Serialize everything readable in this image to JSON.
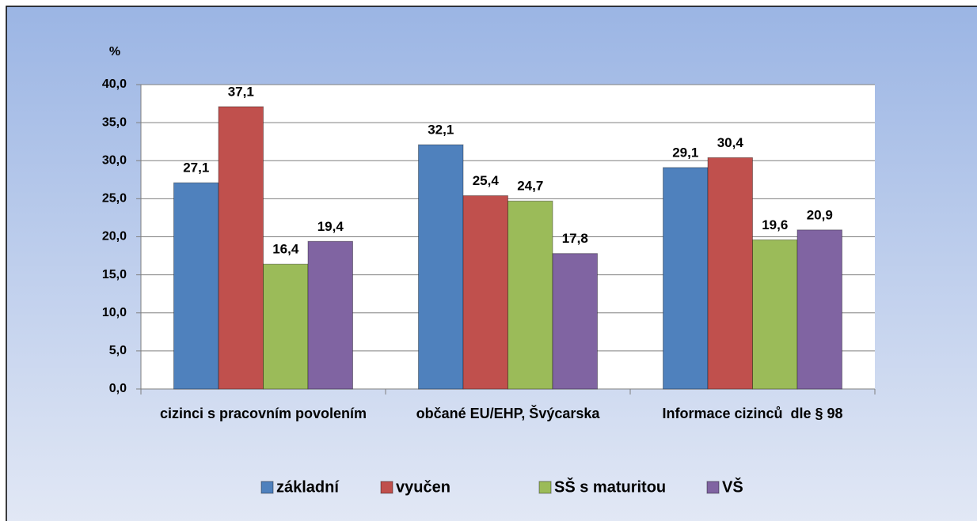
{
  "chart_data": {
    "type": "bar",
    "y_axis_label": "%",
    "categories": [
      "cizinci s pracovním povolením",
      "občané EU/EHP, Švýcarska",
      "Informace cizinců  dle § 98"
    ],
    "series": [
      {
        "name": "základní",
        "color": "#4f81bd",
        "values": [
          27.1,
          32.1,
          29.1
        ],
        "value_labels": [
          "27,1",
          "32,1",
          "29,1"
        ]
      },
      {
        "name": "vyučen",
        "color": "#c0504d",
        "values": [
          37.1,
          25.4,
          30.4
        ],
        "value_labels": [
          "37,1",
          "25,4",
          "30,4"
        ]
      },
      {
        "name": "SŠ s maturitou",
        "color": "#9bbb59",
        "values": [
          16.4,
          24.7,
          19.6
        ],
        "value_labels": [
          "16,4",
          "24,7",
          "19,6"
        ]
      },
      {
        "name": "VŠ",
        "color": "#8064a2",
        "values": [
          19.4,
          17.8,
          20.9
        ],
        "value_labels": [
          "19,4",
          "17,8",
          "20,9"
        ]
      }
    ],
    "ylim": [
      0,
      40
    ],
    "yticks": [
      {
        "value": 0,
        "label": "0,0"
      },
      {
        "value": 5,
        "label": "5,0"
      },
      {
        "value": 10,
        "label": "10,0"
      },
      {
        "value": 15,
        "label": "15,0"
      },
      {
        "value": 20,
        "label": "20,0"
      },
      {
        "value": 25,
        "label": "25,0"
      },
      {
        "value": 30,
        "label": "30,0"
      },
      {
        "value": 35,
        "label": "35,0"
      },
      {
        "value": 40,
        "label": "40,0"
      }
    ],
    "grid": true,
    "legend": "bottom"
  }
}
